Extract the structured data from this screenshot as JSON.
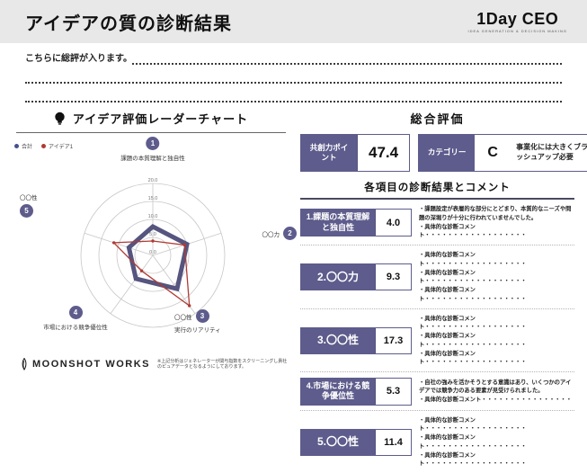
{
  "header": {
    "title": "アイデアの質の診断結果",
    "logo": {
      "name": "1Day CEO",
      "tagline": "IDEA GENERATION & DECISION MAKING"
    }
  },
  "summary": {
    "placeholder": "こちらに総評が入ります。"
  },
  "left_panel": {
    "section_title": "アイデア評価レーダーチャート",
    "footer": {
      "logo_text": "MOONSHOT WORKS",
      "footnote": "※上記分析はジェネレーターが関与指数をスクリーニングし貴社のピュアデータとなるようにしております。"
    }
  },
  "chart_data": {
    "type": "radar",
    "title": "アイデア評価レーダーチャート",
    "max": 20,
    "ticks": [
      0,
      5,
      10,
      15,
      20
    ],
    "tick_labels": [
      "0.0",
      "5.0",
      "10.0",
      "15.0",
      "20.0"
    ],
    "legend": [
      {
        "label": "合計",
        "color": "#44518f"
      },
      {
        "label": "アイデア1",
        "color": "#b03a33"
      }
    ],
    "axes": [
      {
        "num": "1",
        "label": "課題の本質理解と独自性",
        "sublabel": ""
      },
      {
        "num": "2",
        "label": "〇〇力",
        "sublabel": ""
      },
      {
        "num": "3",
        "label": "〇〇性",
        "sublabel": "実行のリアリティ"
      },
      {
        "num": "4",
        "label": "市場における競争優位性",
        "sublabel": ""
      },
      {
        "num": "5",
        "label": "〇〇性",
        "sublabel": ""
      }
    ],
    "series": [
      {
        "name": "合計",
        "color": "#55557f",
        "width": 5,
        "markers": false,
        "values": [
          8,
          10,
          11.5,
          8,
          7
        ]
      },
      {
        "name": "アイデア1",
        "color": "#b03a33",
        "width": 1.3,
        "markers": true,
        "values": [
          4.0,
          9.3,
          17.3,
          5.3,
          11.4
        ]
      }
    ]
  },
  "right_panel": {
    "overall_title": "総合評価",
    "point_box": {
      "label": "共創力ポイント",
      "value": "47.4"
    },
    "category_box": {
      "label": "カテゴリー",
      "value": "C",
      "note": "事業化には大きくブラッシュアップ必要"
    },
    "table_title": "各項目の診断結果とコメント",
    "rows": [
      {
        "label": "1.課題の本質理解と独自性",
        "score": "4.0",
        "comments": [
          "課題設定が表層的な部分にとどまり、本質的なニーズや問題の深堀りが十分に行われていませんでした。",
          "具体的な診断コメント・・・・・・・・・・・・・・・・・・"
        ]
      },
      {
        "label": "2.〇〇力",
        "score": "9.3",
        "comments": [
          "具体的な診断コメント・・・・・・・・・・・・・・・・・・",
          "具体的な診断コメント・・・・・・・・・・・・・・・・・・",
          "具体的な診断コメント・・・・・・・・・・・・・・・・・・"
        ]
      },
      {
        "label": "3.〇〇性",
        "score": "17.3",
        "comments": [
          "具体的な診断コメント・・・・・・・・・・・・・・・・・・",
          "具体的な診断コメント・・・・・・・・・・・・・・・・・・",
          "具体的な診断コメント・・・・・・・・・・・・・・・・・・"
        ]
      },
      {
        "label": "4.市場における競争優位性",
        "score": "5.3",
        "comments": [
          "自社の強みを活かそうとする意識はあり、いくつかのアイデアでは競争力のある要素が見受けられました。",
          "具体的な診断コメント・・・・・・・・・・・・・・・・"
        ]
      },
      {
        "label": "5.〇〇性",
        "score": "11.4",
        "comments": [
          "具体的な診断コメント・・・・・・・・・・・・・・・・・・",
          "具体的な診断コメント・・・・・・・・・・・・・・・・・・",
          "具体的な診断コメント・・・・・・・・・・・・・・・・・・"
        ]
      }
    ]
  },
  "colors": {
    "accent_purple": "#5e5c8c",
    "series_purple": "#55557f",
    "accent_red": "#b03a33",
    "header_bg": "#e8e8e8"
  }
}
